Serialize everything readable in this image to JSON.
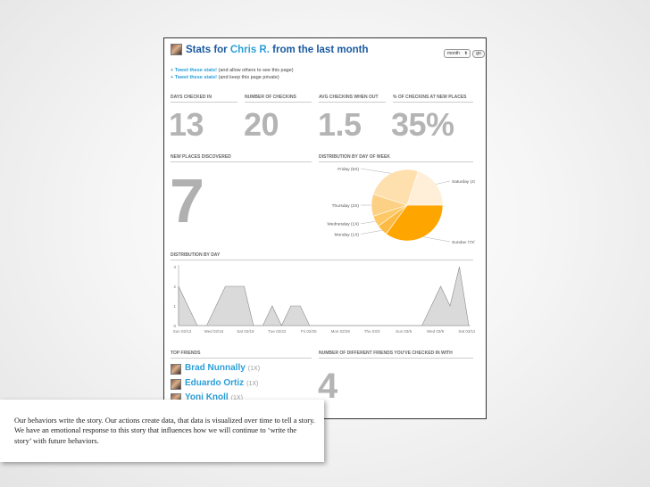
{
  "header": {
    "title_prefix": "Stats for ",
    "user": "Chris R.",
    "title_suffix": " from the last month",
    "period_select": "month",
    "go_label": "go"
  },
  "tweets": [
    {
      "link": "+ Tweet these stats!",
      "note": "(and allow others to see this page)"
    },
    {
      "link": "+ Tweet these stats!",
      "note": "(and keep this page private)"
    }
  ],
  "stats": [
    {
      "label": "Days checked in",
      "value": "13"
    },
    {
      "label": "Number of checkins",
      "value": "20"
    },
    {
      "label": "Avg checkins when out",
      "value": "1.5"
    },
    {
      "label": "% of checkins at new places",
      "value": "35%"
    }
  ],
  "new_places": {
    "label": "New places discovered",
    "value": "7"
  },
  "pie": {
    "label": "Distribution by day of week",
    "chart_data": {
      "type": "pie",
      "slices": [
        {
          "label": "Sunday (7X)",
          "value": 7,
          "color": "#FFA500"
        },
        {
          "label": "Monday (1X)",
          "value": 1,
          "color": "#FDBB45"
        },
        {
          "label": "Wednesday (1X)",
          "value": 1,
          "color": "#FDC865"
        },
        {
          "label": "Thursday (2X)",
          "value": 2,
          "color": "#FDD185"
        },
        {
          "label": "Friday (5X)",
          "value": 5,
          "color": "#FEE0AE"
        },
        {
          "label": "Saturday (4X)",
          "value": 4,
          "color": "#FFEED8"
        }
      ]
    }
  },
  "day_chart": {
    "label": "Distribution by day",
    "chart_data": {
      "type": "area",
      "ylim": [
        0,
        3
      ],
      "y_ticks": [
        "3",
        "2",
        "1",
        "0"
      ],
      "x_ticks": [
        "Sun 02/13",
        "Wed 02/16",
        "Sat 02/19",
        "Tue 02/22",
        "Fri 02/25",
        "Mon 02/28",
        "Thu 03/3",
        "Sun 03/6",
        "Wed 03/9",
        "Sat 03/12"
      ],
      "values": [
        2,
        1,
        0,
        0,
        1,
        2,
        2,
        2,
        0,
        0,
        1,
        0,
        1,
        1,
        0,
        0,
        0,
        0,
        0,
        0,
        0,
        0,
        0,
        0,
        0,
        0,
        0,
        1,
        2,
        1,
        3,
        0
      ]
    }
  },
  "friends": {
    "label": "Top friends",
    "items": [
      {
        "name": "Brad Nunnally",
        "count": "(1X)"
      },
      {
        "name": "Eduardo Ortiz",
        "count": "(1X)"
      },
      {
        "name": "Yoni Knoll",
        "count": "(1X)"
      }
    ]
  },
  "different_friends": {
    "label": "Number of different friends you've checked in with",
    "value": "4"
  },
  "caption": "Our behaviors write the story. Our actions create data, that data is visualized over time to tell a story. We have an emotional response to this story that influences how we will continue to ‘write the story’ with future behaviors."
}
